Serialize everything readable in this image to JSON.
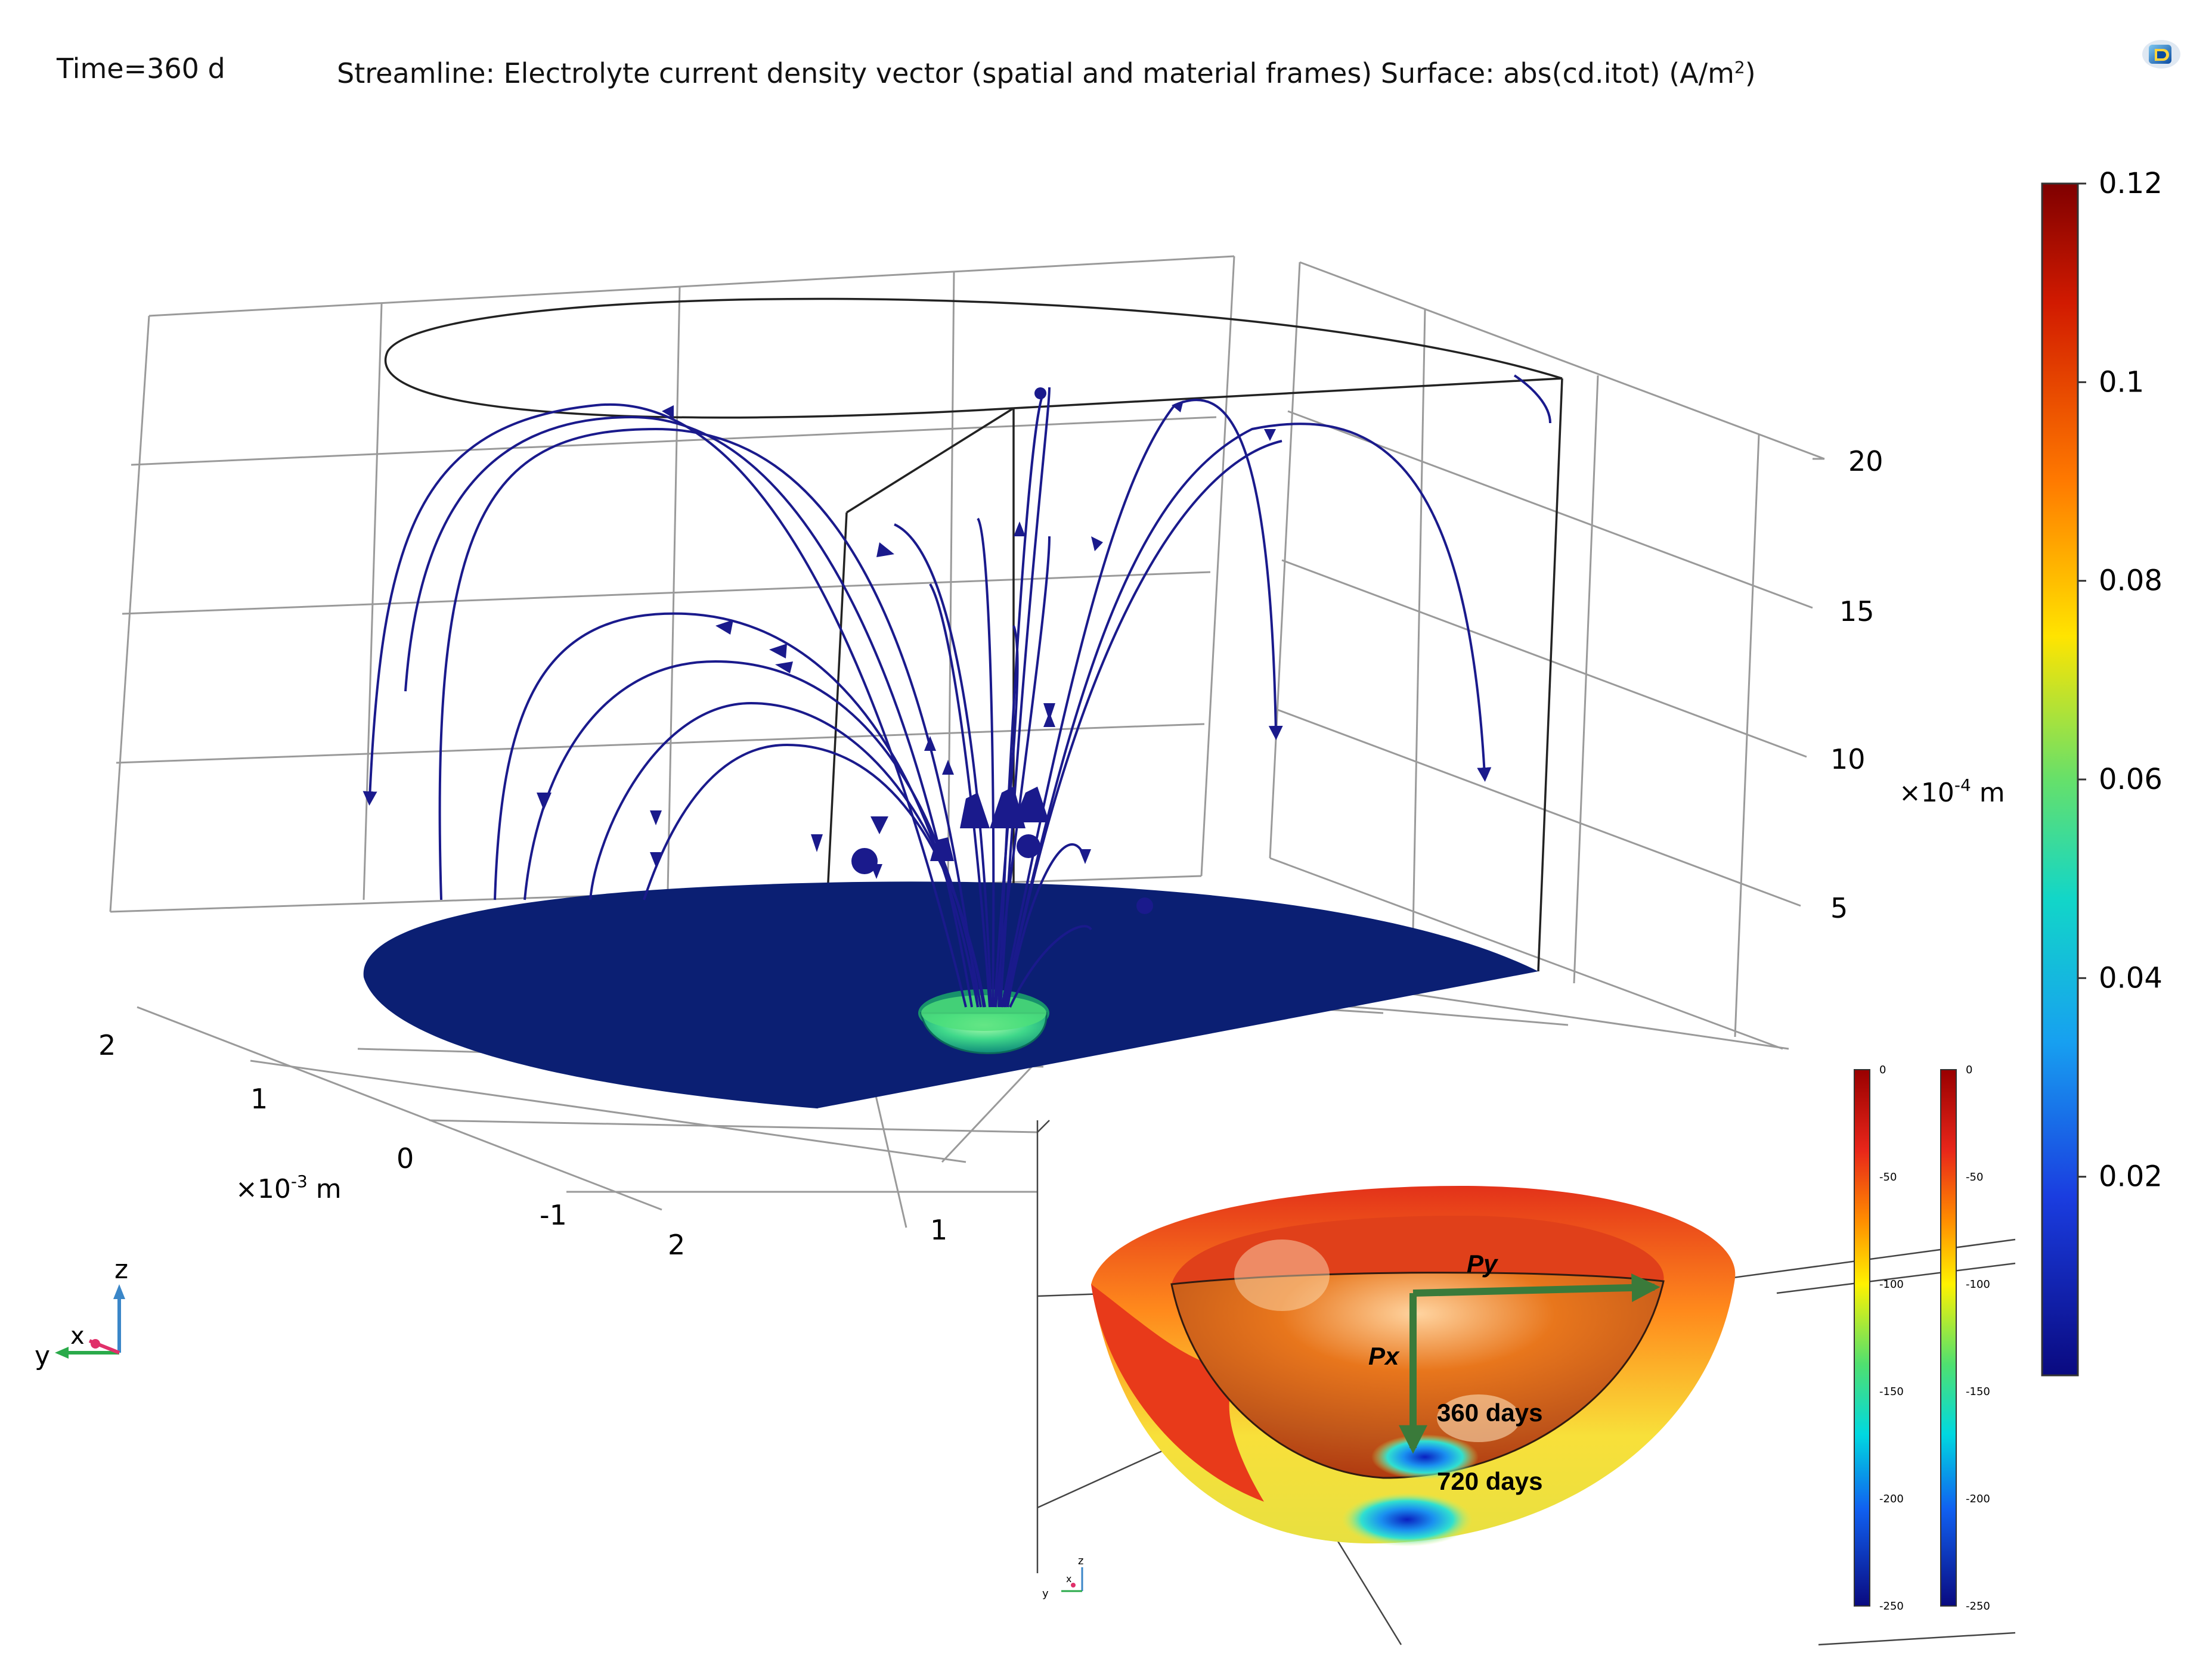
{
  "header": {
    "time_label": "Time=360 d",
    "title_main": "Streamline: Electrolyte current density vector (spatial and material frames)  Surface: abs(cd.itot) (A/m",
    "title_sup": "2",
    "title_end": ")"
  },
  "chart_data": [
    {
      "type": "3d-surface-streamline",
      "z_axis": {
        "ticks": [
          "5",
          "10",
          "15",
          "20"
        ],
        "unit_base": "×10",
        "unit_exp": "-4",
        "unit_suffix": " m"
      },
      "y_axis": {
        "ticks": [
          "2",
          "1",
          "0",
          "-1"
        ],
        "unit_base": "×10",
        "unit_exp": "-3",
        "unit_suffix": " m"
      },
      "x_axis": {
        "ticks": [
          "2",
          "1"
        ]
      },
      "colorbar": {
        "ticks": [
          "0.12",
          "0.1",
          "0.08",
          "0.06",
          "0.04",
          "0.02"
        ],
        "tick_values": [
          0.12,
          0.1,
          0.08,
          0.06,
          0.04,
          0.02
        ],
        "range": [
          0,
          0.12
        ],
        "colormap": "rainbow"
      },
      "streamline_color": "#1a1a8c",
      "surface_color": "#0b1f73"
    },
    {
      "type": "3d-surface-inset",
      "labels": {
        "py": "Py",
        "px": "Px",
        "day360": "360 days",
        "day720": "720 days"
      },
      "arrow_color": "#3a7a3a",
      "colorbars": [
        {
          "ticks": [
            "0",
            "-50",
            "-100",
            "-150",
            "-200",
            "-250"
          ],
          "range": [
            -250,
            0
          ]
        },
        {
          "ticks": [
            "0",
            "-50",
            "-100",
            "-150",
            "-200",
            "-250"
          ],
          "range": [
            -250,
            0
          ]
        }
      ]
    }
  ],
  "triad": {
    "z": "z",
    "x": "x",
    "y": "y"
  },
  "inset_triad": {
    "z": "z",
    "x": "x",
    "y": "y"
  },
  "icons": {
    "logo": "comsol-logo-icon"
  }
}
